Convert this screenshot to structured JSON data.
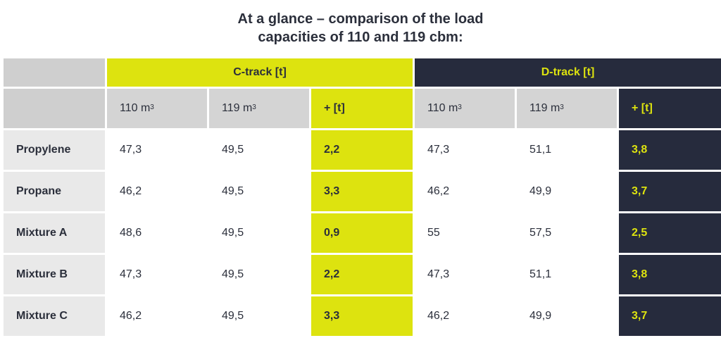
{
  "title": {
    "line1": "At a glance – comparison of the load",
    "line2": "capacities of 110 and 119 cbm:"
  },
  "groups": {
    "c_track": "C-track [t]",
    "d_track": "D-track [t]"
  },
  "subheaders": {
    "c_110": "110 m",
    "c_119": "119 m",
    "c_plus": "+ [t]",
    "d_110": "110 m",
    "d_119": "119 m",
    "d_plus": "+ [t]",
    "unit_sup": "3"
  },
  "rows": [
    {
      "label": "Propylene",
      "c110": "47,3",
      "c119": "49,5",
      "cplus": "2,2",
      "d110": "47,3",
      "d119": "51,1",
      "dplus": "3,8"
    },
    {
      "label": "Propane",
      "c110": "46,2",
      "c119": "49,5",
      "cplus": "3,3",
      "d110": "46,2",
      "d119": "49,9",
      "dplus": "3,7"
    },
    {
      "label": "Mixture A",
      "c110": "48,6",
      "c119": "49,5",
      "cplus": "0,9",
      "d110": "55",
      "d119": "57,5",
      "dplus": "2,5"
    },
    {
      "label": "Mixture B",
      "c110": "47,3",
      "c119": "49,5",
      "cplus": "2,2",
      "d110": "47,3",
      "d119": "51,1",
      "dplus": "3,8"
    },
    {
      "label": "Mixture C",
      "c110": "46,2",
      "c119": "49,5",
      "cplus": "3,3",
      "d110": "46,2",
      "d119": "49,9",
      "dplus": "3,7"
    }
  ],
  "colors": {
    "accent_yellow": "#dde30f",
    "dark_navy": "#262b3d",
    "grey_header": "#d4d4d4",
    "row_label_bg": "#e9e9e9"
  }
}
